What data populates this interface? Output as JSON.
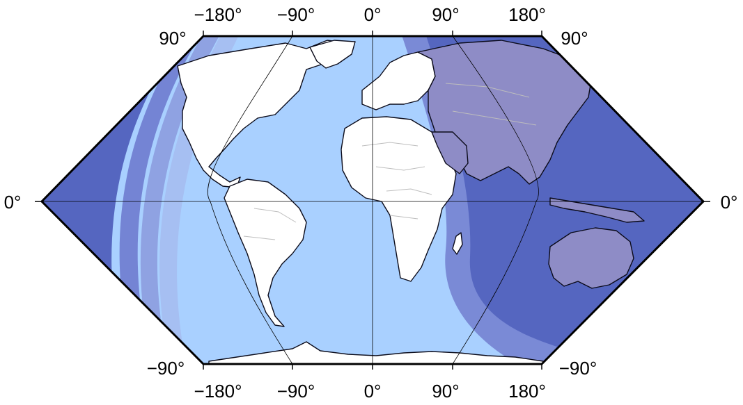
{
  "map": {
    "projection": "sinusoidal-like world map",
    "theme": "day-night terminator shading",
    "colors": {
      "night_deep": "#5566c0",
      "night_mid": "#7484d4",
      "twilight_1": "#8fa2e2",
      "twilight_2": "#a6bff2",
      "day_ocean": "#a9d0ff",
      "land": "#ffffff",
      "coast": "#0b0b1a",
      "borders": "#bdbdbd",
      "grid": "#000000"
    },
    "labels": {
      "top_lon": [
        "−180°",
        "−90°",
        "0°",
        "90°",
        "180°"
      ],
      "bottom_lon": [
        "−180°",
        "−90°",
        "0°",
        "90°",
        "180°"
      ],
      "lat_top_left": "90°",
      "lat_top_right": "90°",
      "lat_mid_left": "0°",
      "lat_mid_right": "0°",
      "lat_bottom_left": "−90°",
      "lat_bottom_right": "−90°"
    }
  }
}
